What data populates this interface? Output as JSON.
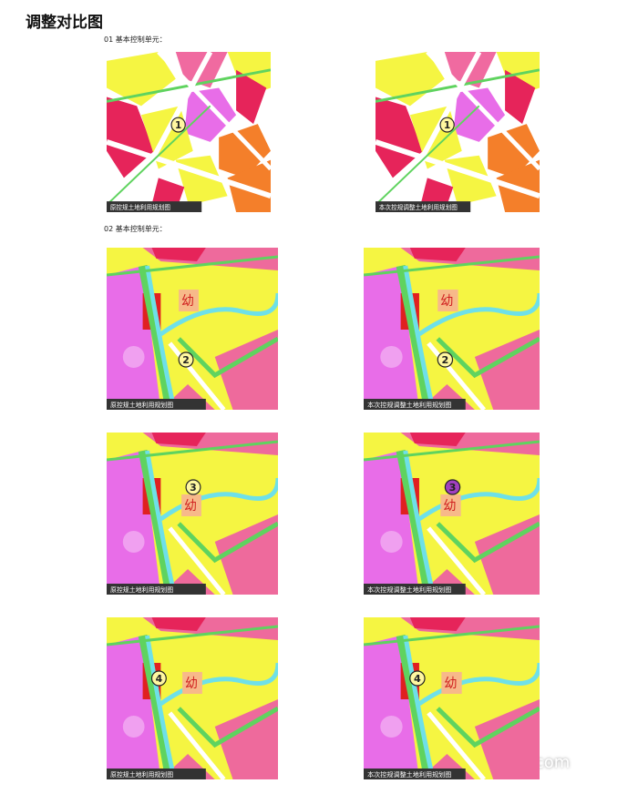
{
  "header": {
    "title": "调整对比图"
  },
  "sections": [
    {
      "label": "01 基本控制单元：",
      "rows": [
        {
          "left": {
            "caption": "原控规土地利用规划图",
            "marker": "1"
          },
          "right": {
            "caption": "本次控规调整土地利用规划图",
            "marker": "1"
          }
        }
      ]
    },
    {
      "label": "02 基本控制单元：",
      "rows": [
        {
          "left": {
            "caption": "原控规土地利用规划图",
            "marker": "2",
            "kindergarten": "幼"
          },
          "right": {
            "caption": "本次控规调整土地利用规划图",
            "marker": "2",
            "kindergarten": "幼"
          }
        },
        {
          "left": {
            "caption": "原控规土地利用规划图",
            "marker": "3",
            "kindergarten": "幼"
          },
          "right": {
            "caption": "本次控规调整土地利用规划图",
            "marker": "3",
            "kindergarten": "幼"
          }
        },
        {
          "left": {
            "caption": "原控规土地利用规划图",
            "marker": "4",
            "kindergarten": "幼"
          },
          "right": {
            "caption": "本次控规调整土地利用规划图",
            "marker": "4",
            "kindergarten": "幼"
          }
        }
      ]
    }
  ],
  "watermark": "taicangfc.com"
}
